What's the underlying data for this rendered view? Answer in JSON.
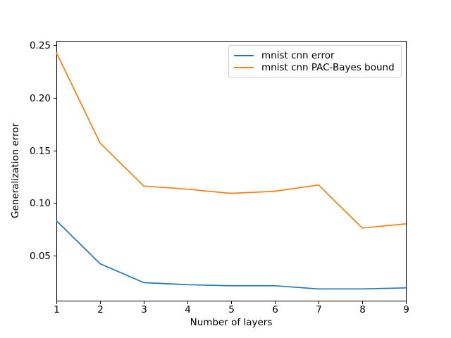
{
  "figure": {
    "background": "#ffffff",
    "axis_color": "#000000",
    "legend_border_color": "#cccccc"
  },
  "chart_data": {
    "type": "line",
    "title": "",
    "xlabel": "Number of layers",
    "ylabel": "Generalization error",
    "x": [
      1,
      2,
      3,
      4,
      5,
      6,
      7,
      8,
      9
    ],
    "series": [
      {
        "name": "mnist cnn error",
        "color": "#1f77b4",
        "values": [
          0.083,
          0.042,
          0.024,
          0.022,
          0.021,
          0.021,
          0.018,
          0.018,
          0.019
        ]
      },
      {
        "name": "mnist cnn PAC-Bayes bound",
        "color": "#ff7f0e",
        "values": [
          0.243,
          0.157,
          0.116,
          0.113,
          0.109,
          0.111,
          0.117,
          0.076,
          0.08
        ]
      }
    ],
    "xlim": [
      1,
      9
    ],
    "ylim": [
      0.0068,
      0.2543
    ],
    "xtick_labels": [
      "1",
      "2",
      "3",
      "4",
      "5",
      "6",
      "7",
      "8",
      "9"
    ],
    "xtick_values": [
      1,
      2,
      3,
      4,
      5,
      6,
      7,
      8,
      9
    ],
    "ytick_labels": [
      "0.05",
      "0.10",
      "0.15",
      "0.20",
      "0.25"
    ],
    "ytick_values": [
      0.05,
      0.1,
      0.15,
      0.2,
      0.25
    ],
    "grid": false,
    "legend_position": "upper right"
  }
}
